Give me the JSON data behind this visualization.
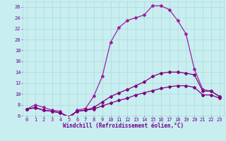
{
  "xlabel": "Windchill (Refroidissement éolien,°C)",
  "bg_color": "#c8eef0",
  "grid_color": "#a8d4d8",
  "line_color1": "#a020a0",
  "line_color2": "#800080",
  "xlim": [
    -0.5,
    23.5
  ],
  "ylim": [
    6,
    27
  ],
  "yticks": [
    6,
    8,
    10,
    12,
    14,
    16,
    18,
    20,
    22,
    24,
    26
  ],
  "xticks": [
    0,
    1,
    2,
    3,
    4,
    5,
    6,
    7,
    8,
    9,
    10,
    11,
    12,
    13,
    14,
    15,
    16,
    17,
    18,
    19,
    20,
    21,
    22,
    23
  ],
  "curve1_x": [
    0,
    1,
    2,
    3,
    4,
    5,
    6,
    7,
    8,
    9,
    10,
    11,
    12,
    13,
    14,
    15,
    16,
    17,
    18,
    19,
    20,
    21,
    22,
    23
  ],
  "curve1_y": [
    7.2,
    8.0,
    7.5,
    7.0,
    6.8,
    5.2,
    7.0,
    7.3,
    9.6,
    13.2,
    19.5,
    22.2,
    23.5,
    24.0,
    24.5,
    26.2,
    26.2,
    25.5,
    23.5,
    21.0,
    14.5,
    10.8,
    10.5,
    9.5
  ],
  "curve2_x": [
    0,
    1,
    2,
    3,
    4,
    5,
    6,
    7,
    8,
    9,
    10,
    11,
    12,
    13,
    14,
    15,
    16,
    17,
    18,
    19,
    20,
    21,
    22,
    23
  ],
  "curve2_y": [
    7.2,
    7.5,
    7.0,
    6.8,
    6.5,
    5.8,
    6.8,
    7.0,
    7.5,
    8.5,
    9.5,
    10.2,
    10.8,
    11.5,
    12.2,
    13.2,
    13.8,
    14.0,
    14.0,
    13.8,
    13.5,
    10.5,
    10.5,
    9.5
  ],
  "curve3_x": [
    0,
    1,
    2,
    3,
    4,
    5,
    6,
    7,
    8,
    9,
    10,
    11,
    12,
    13,
    14,
    15,
    16,
    17,
    18,
    19,
    20,
    21,
    22,
    23
  ],
  "curve3_y": [
    7.2,
    7.4,
    7.0,
    6.8,
    6.5,
    5.8,
    6.8,
    7.0,
    7.2,
    7.8,
    8.3,
    8.8,
    9.2,
    9.8,
    10.2,
    10.6,
    11.0,
    11.3,
    11.5,
    11.5,
    11.2,
    9.8,
    9.8,
    9.2
  ],
  "marker": "D",
  "markersize": 2.0,
  "linewidth": 0.9,
  "font_color": "#700090",
  "xlabel_fontsize": 5.5,
  "tick_fontsize": 5.0
}
